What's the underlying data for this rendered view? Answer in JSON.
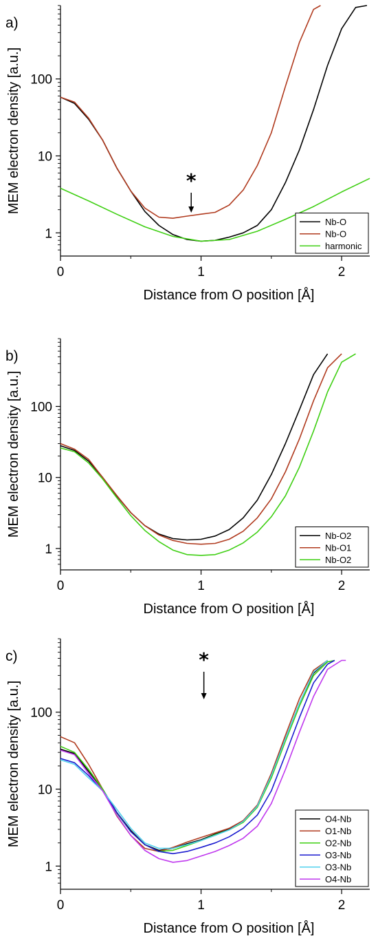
{
  "chart_data": [
    {
      "type": "line",
      "panel_label": "a)",
      "xlabel": "Distance from O position [Å]",
      "ylabel": "MEM electron density [a.u.]",
      "xlim": [
        0,
        2.2
      ],
      "ylim": [
        0.5,
        900
      ],
      "yscale": "log",
      "xticks": [
        "0",
        "1",
        "2"
      ],
      "yticks": [
        "1",
        "10",
        "100"
      ],
      "legend_position": "bottom-right",
      "annotation": {
        "text": "*",
        "x": 0.93
      },
      "series": [
        {
          "name": "Nb-O",
          "color": "#000000",
          "x": [
            0,
            0.1,
            0.2,
            0.3,
            0.4,
            0.5,
            0.6,
            0.7,
            0.8,
            0.9,
            1.0,
            1.1,
            1.2,
            1.3,
            1.4,
            1.5,
            1.6,
            1.7,
            1.8,
            1.9,
            2.0,
            2.1,
            2.18
          ],
          "y": [
            58,
            48,
            30,
            16,
            7,
            3.5,
            1.9,
            1.25,
            0.95,
            0.82,
            0.78,
            0.8,
            0.88,
            1.0,
            1.25,
            2,
            4.5,
            12,
            40,
            150,
            450,
            850,
            900
          ]
        },
        {
          "name": "Nb-O",
          "color": "#b03a1e",
          "x": [
            0,
            0.1,
            0.2,
            0.3,
            0.4,
            0.5,
            0.6,
            0.7,
            0.8,
            0.9,
            1.0,
            1.1,
            1.2,
            1.3,
            1.4,
            1.5,
            1.6,
            1.7,
            1.8,
            1.85
          ],
          "y": [
            58,
            50,
            31,
            16,
            7,
            3.5,
            2.1,
            1.6,
            1.55,
            1.65,
            1.75,
            1.85,
            2.3,
            3.6,
            7.5,
            20,
            80,
            300,
            800,
            900
          ]
        },
        {
          "name": "harmonic",
          "color": "#3ecf12",
          "x": [
            0,
            0.2,
            0.4,
            0.6,
            0.8,
            1.0,
            1.2,
            1.4,
            1.6,
            1.8,
            2.0,
            2.2
          ],
          "y": [
            3.8,
            2.6,
            1.75,
            1.2,
            0.9,
            0.78,
            0.82,
            1.05,
            1.5,
            2.2,
            3.4,
            5.1
          ]
        }
      ]
    },
    {
      "type": "line",
      "panel_label": "b)",
      "xlabel": "Distance from O position [Å]",
      "ylabel": "MEM electron density [a.u.]",
      "xlim": [
        0,
        2.2
      ],
      "ylim": [
        0.5,
        900
      ],
      "yscale": "log",
      "xticks": [
        "0",
        "1",
        "2"
      ],
      "yticks": [
        "1",
        "10",
        "100"
      ],
      "legend_position": "bottom-right",
      "series": [
        {
          "name": "Nb-O2",
          "color": "#000000",
          "x": [
            0,
            0.1,
            0.2,
            0.3,
            0.4,
            0.5,
            0.6,
            0.7,
            0.8,
            0.9,
            1.0,
            1.1,
            1.2,
            1.3,
            1.4,
            1.5,
            1.6,
            1.7,
            1.8,
            1.9
          ],
          "y": [
            28,
            24,
            17,
            10,
            5.5,
            3.2,
            2.1,
            1.6,
            1.38,
            1.32,
            1.35,
            1.5,
            1.85,
            2.7,
            4.8,
            11,
            30,
            90,
            280,
            550
          ]
        },
        {
          "name": "Nb-O1",
          "color": "#b03a1e",
          "x": [
            0,
            0.1,
            0.2,
            0.3,
            0.4,
            0.5,
            0.6,
            0.7,
            0.8,
            0.9,
            1.0,
            1.1,
            1.2,
            1.3,
            1.4,
            1.5,
            1.6,
            1.7,
            1.8,
            1.9,
            2.0
          ],
          "y": [
            30,
            25,
            18,
            10,
            5.6,
            3.2,
            2.1,
            1.55,
            1.3,
            1.18,
            1.15,
            1.18,
            1.35,
            1.75,
            2.7,
            5,
            12,
            35,
            120,
            350,
            550
          ]
        },
        {
          "name": "Nb-O2",
          "color": "#3ecf12",
          "x": [
            0,
            0.1,
            0.2,
            0.3,
            0.4,
            0.5,
            0.6,
            0.7,
            0.8,
            0.9,
            1.0,
            1.1,
            1.2,
            1.3,
            1.4,
            1.5,
            1.6,
            1.7,
            1.8,
            1.9,
            2.0,
            2.1
          ],
          "y": [
            26,
            23,
            16,
            9.5,
            5.2,
            2.9,
            1.8,
            1.25,
            0.95,
            0.82,
            0.8,
            0.82,
            0.95,
            1.2,
            1.7,
            2.8,
            5.5,
            14,
            45,
            160,
            420,
            550
          ]
        }
      ]
    },
    {
      "type": "line",
      "panel_label": "c)",
      "xlabel": "Distance from O position [Å]",
      "ylabel": "MEM electron density [a.u.]",
      "xlim": [
        0,
        2.2
      ],
      "ylim": [
        0.5,
        900
      ],
      "yscale": "log",
      "xticks": [
        "0",
        "1",
        "2"
      ],
      "yticks": [
        "1",
        "10",
        "100"
      ],
      "legend_position": "bottom-right",
      "annotation": {
        "text": "*",
        "x": 1.02
      },
      "series": [
        {
          "name": "O4-Nb",
          "color": "#000000",
          "x": [
            0,
            0.1,
            0.2,
            0.3,
            0.4,
            0.5,
            0.6,
            0.7,
            0.8,
            0.9,
            1.0,
            1.1,
            1.2,
            1.3,
            1.4,
            1.5,
            1.6,
            1.7,
            1.8,
            1.9
          ],
          "y": [
            33,
            29,
            17,
            10,
            5,
            2.9,
            1.9,
            1.6,
            1.7,
            1.95,
            2.2,
            2.6,
            3,
            3.8,
            6,
            15,
            45,
            130,
            320,
            470
          ]
        },
        {
          "name": "O1-Nb",
          "color": "#b03a1e",
          "x": [
            0,
            0.1,
            0.2,
            0.3,
            0.4,
            0.5,
            0.6,
            0.7,
            0.8,
            0.9,
            1.0,
            1.1,
            1.2,
            1.3,
            1.4,
            1.5,
            1.6,
            1.7,
            1.8,
            1.9
          ],
          "y": [
            48,
            40,
            21,
            10,
            4.5,
            2.5,
            1.7,
            1.55,
            1.75,
            2.05,
            2.35,
            2.7,
            3.1,
            3.9,
            6.2,
            16,
            50,
            150,
            350,
            470
          ]
        },
        {
          "name": "O2-Nb",
          "color": "#3ecf12",
          "x": [
            0,
            0.1,
            0.2,
            0.3,
            0.4,
            0.5,
            0.6,
            0.7,
            0.8,
            0.9,
            1.0,
            1.1,
            1.2,
            1.3,
            1.4,
            1.5,
            1.6,
            1.7,
            1.8,
            1.9,
            1.95
          ],
          "y": [
            36,
            30,
            18,
            10,
            4.9,
            2.8,
            1.9,
            1.55,
            1.6,
            1.85,
            2.15,
            2.55,
            2.95,
            3.7,
            5.8,
            14,
            42,
            120,
            300,
            450,
            470
          ]
        },
        {
          "name": "O3-Nb",
          "color": "#1a1acf",
          "x": [
            0,
            0.1,
            0.2,
            0.3,
            0.4,
            0.5,
            0.6,
            0.7,
            0.8,
            0.9,
            1.0,
            1.1,
            1.2,
            1.3,
            1.4,
            1.5,
            1.6,
            1.7,
            1.8,
            1.9,
            1.95
          ],
          "y": [
            25,
            22,
            15,
            9.5,
            5,
            2.8,
            1.9,
            1.55,
            1.45,
            1.55,
            1.75,
            2,
            2.4,
            3.1,
            4.6,
            9.5,
            28,
            85,
            240,
            420,
            470
          ]
        },
        {
          "name": "O3-Nb",
          "color": "#4fd0ee",
          "x": [
            0,
            0.1,
            0.2,
            0.3,
            0.4,
            0.5,
            0.6,
            0.7,
            0.8,
            0.9,
            1.0,
            1.1,
            1.2,
            1.3,
            1.4,
            1.5,
            1.6,
            1.7,
            1.8,
            1.9
          ],
          "y": [
            24,
            21,
            14,
            9.5,
            5.5,
            3.1,
            2,
            1.7,
            1.7,
            1.9,
            2.15,
            2.5,
            2.95,
            3.8,
            6,
            15,
            45,
            130,
            330,
            470
          ]
        },
        {
          "name": "O4-Nb",
          "color": "#bf37ee",
          "x": [
            0,
            0.1,
            0.2,
            0.3,
            0.4,
            0.5,
            0.6,
            0.7,
            0.8,
            0.9,
            1.0,
            1.1,
            1.2,
            1.3,
            1.4,
            1.5,
            1.6,
            1.7,
            1.8,
            1.9,
            2.0,
            2.03
          ],
          "y": [
            32,
            28,
            16,
            9.5,
            4.6,
            2.5,
            1.6,
            1.25,
            1.12,
            1.18,
            1.35,
            1.55,
            1.85,
            2.3,
            3.3,
            6.5,
            18,
            55,
            160,
            360,
            470,
            470
          ]
        }
      ]
    }
  ]
}
